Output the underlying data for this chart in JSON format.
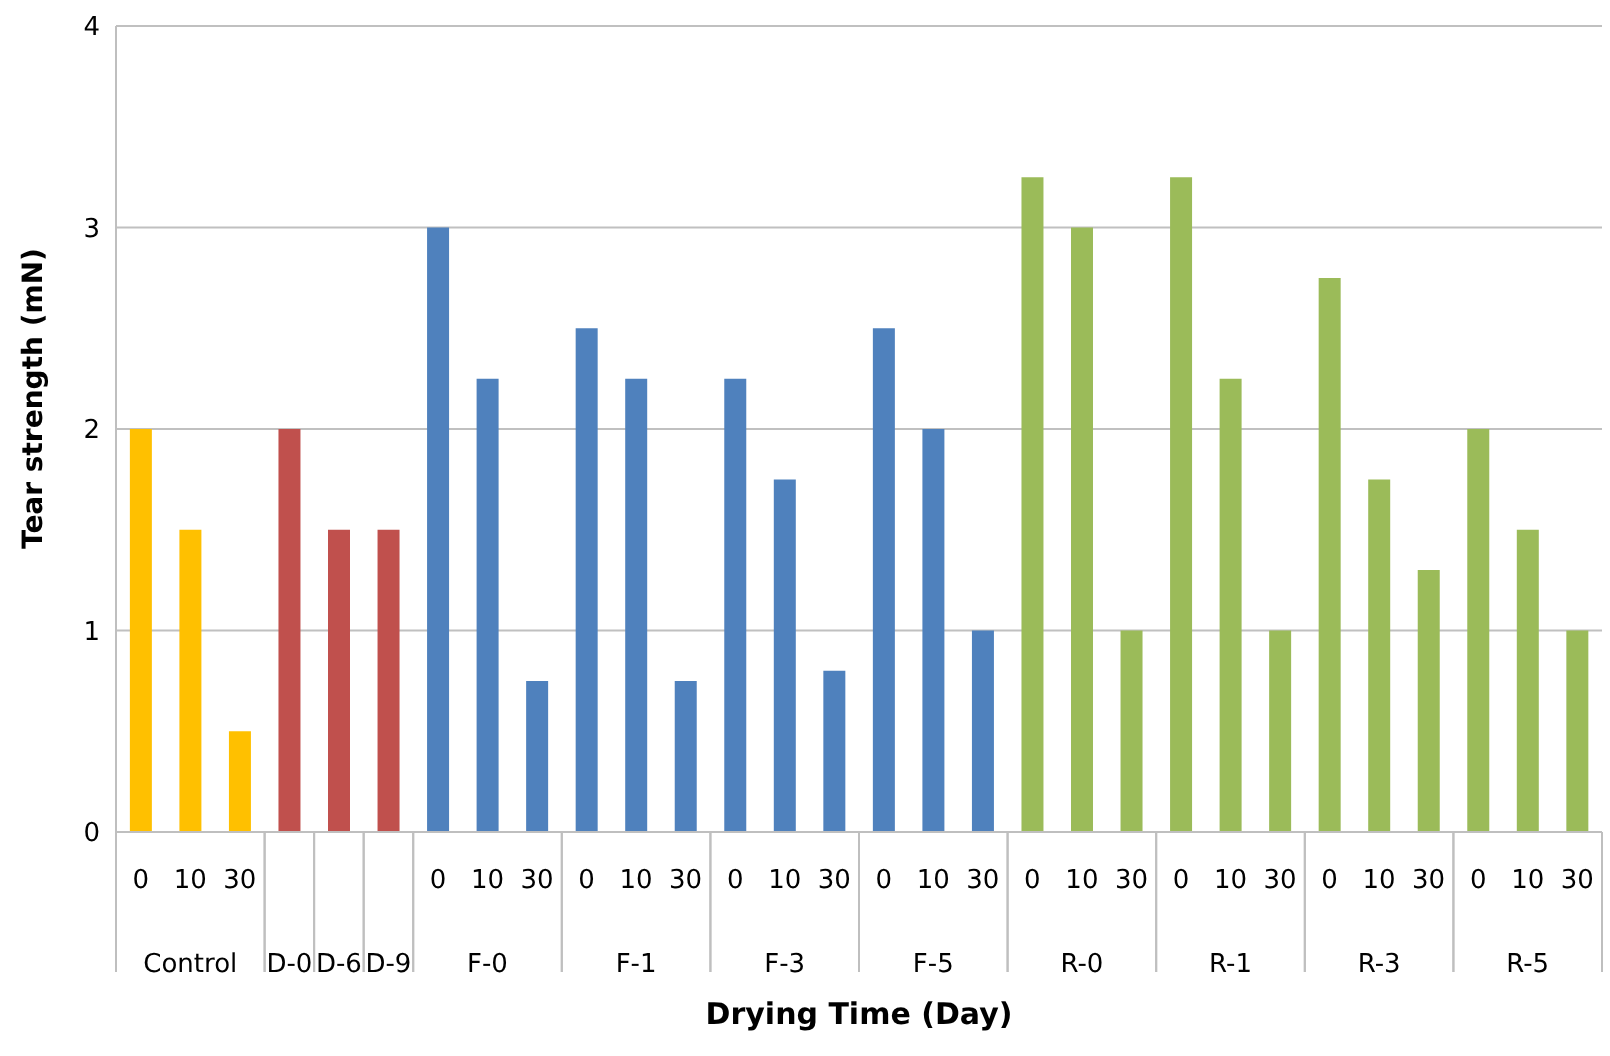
{
  "chart_data": {
    "type": "bar",
    "xlabel": "Drying Time (Day)",
    "ylabel": "Tear strength (mN)",
    "categories": [
      "0",
      "10",
      "30",
      null,
      null,
      null,
      "0",
      "10",
      "30",
      "0",
      "10",
      "30",
      "0",
      "10",
      "30",
      "0",
      "10",
      "30",
      "0",
      "10",
      "30",
      "0",
      "10",
      "30",
      "0",
      "10",
      "30",
      "0",
      "10",
      "30"
    ],
    "values": [
      2,
      1.5,
      0.5,
      2,
      1.5,
      1.5,
      3,
      2.25,
      0.75,
      2.5,
      2.25,
      0.75,
      2.25,
      1.75,
      0.8,
      2.5,
      2,
      1,
      3.25,
      3,
      1,
      3.25,
      2.25,
      1,
      2.75,
      1.75,
      1.3,
      2,
      1.5,
      1
    ],
    "colors": [
      "#ffc000",
      "#ffc000",
      "#ffc000",
      "#c0504d",
      "#c0504d",
      "#c0504d",
      "#4f81bd",
      "#4f81bd",
      "#4f81bd",
      "#4f81bd",
      "#4f81bd",
      "#4f81bd",
      "#4f81bd",
      "#4f81bd",
      "#4f81bd",
      "#4f81bd",
      "#4f81bd",
      "#4f81bd",
      "#9bbb59",
      "#9bbb59",
      "#9bbb59",
      "#9bbb59",
      "#9bbb59",
      "#9bbb59",
      "#9bbb59",
      "#9bbb59",
      "#9bbb59",
      "#9bbb59",
      "#9bbb59",
      "#9bbb59"
    ],
    "annotations": [
      "Control",
      "D-0",
      "D-6",
      "D-9",
      "F-0",
      "F-1",
      "F-3",
      "F-5",
      "R-0",
      "R-1",
      "R-3",
      "R-5"
    ],
    "ylim": [
      0,
      4
    ],
    "yticks": [
      0,
      1,
      2,
      3,
      4
    ],
    "grid": "y",
    "legend": false
  }
}
